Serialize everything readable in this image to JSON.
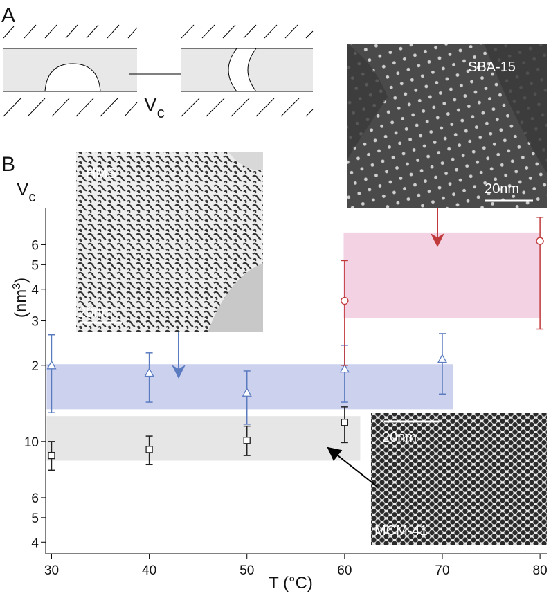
{
  "panel_labels": [
    "A",
    "B"
  ],
  "diagram": {
    "arrow_label": {
      "main": "V",
      "sub": "c"
    }
  },
  "images": [
    {
      "label": "HMS",
      "scale": "20nm"
    },
    {
      "label": "SBA-15",
      "scale": "20nm"
    },
    {
      "label": "MCM-41",
      "scale": "20nm"
    }
  ],
  "chart_data": {
    "type": "scatter",
    "y_label_top": {
      "main": "V",
      "sub": "c"
    },
    "y_label": {
      "open": "(nm",
      "sup": "3",
      "close": ")"
    },
    "x_label": "T (°C)",
    "log_y": true,
    "xlim": [
      29.4,
      80.7
    ],
    "xticks": [
      30,
      40,
      50,
      60,
      70,
      80
    ],
    "ylim": [
      3.6,
      84
    ],
    "yticks": [
      4,
      5,
      6,
      10,
      {
        "value": 20,
        "label": "2"
      },
      {
        "value": 30,
        "label": "3"
      },
      {
        "value": 40,
        "label": "4"
      },
      {
        "value": 50,
        "label": "5"
      },
      {
        "value": 60,
        "label": "6"
      }
    ],
    "series": [
      {
        "color": "#222222",
        "marker": "square",
        "x": [
          30,
          40,
          50,
          60
        ],
        "values": [
          8.8,
          9.3,
          10.1,
          11.9
        ],
        "upper": [
          10.0,
          10.5,
          11.5,
          13.7
        ],
        "lower": [
          7.7,
          8.1,
          8.8,
          9.9
        ],
        "band": {
          "x": [
            29.5,
            61.6
          ],
          "y": [
            8.4,
            12.6
          ],
          "color": "#e6e6e6"
        }
      },
      {
        "color": "#5b7bc0",
        "marker": "triangle",
        "x": [
          30,
          40,
          50,
          60,
          70
        ],
        "values": [
          20.0,
          18.7,
          15.6,
          19.4,
          21.2
        ],
        "upper": [
          26.4,
          22.4,
          19.0,
          24.0,
          26.7
        ],
        "lower": [
          13.0,
          14.3,
          11.7,
          14.3,
          15.4
        ],
        "band": {
          "x": [
            29.5,
            71.1
          ],
          "y": [
            13.4,
            20.2
          ],
          "color": "#ccd2ee"
        }
      },
      {
        "color": "#c0393b",
        "marker": "circle",
        "x": [
          60,
          80
        ],
        "values": [
          36,
          62
        ],
        "upper": [
          51.9,
          77.0
        ],
        "lower": [
          20.0,
          27.8
        ],
        "band": {
          "x": [
            59.9,
            80.0
          ],
          "y": [
            30.7,
            67
          ],
          "color": "#f3d3e3"
        }
      }
    ]
  }
}
